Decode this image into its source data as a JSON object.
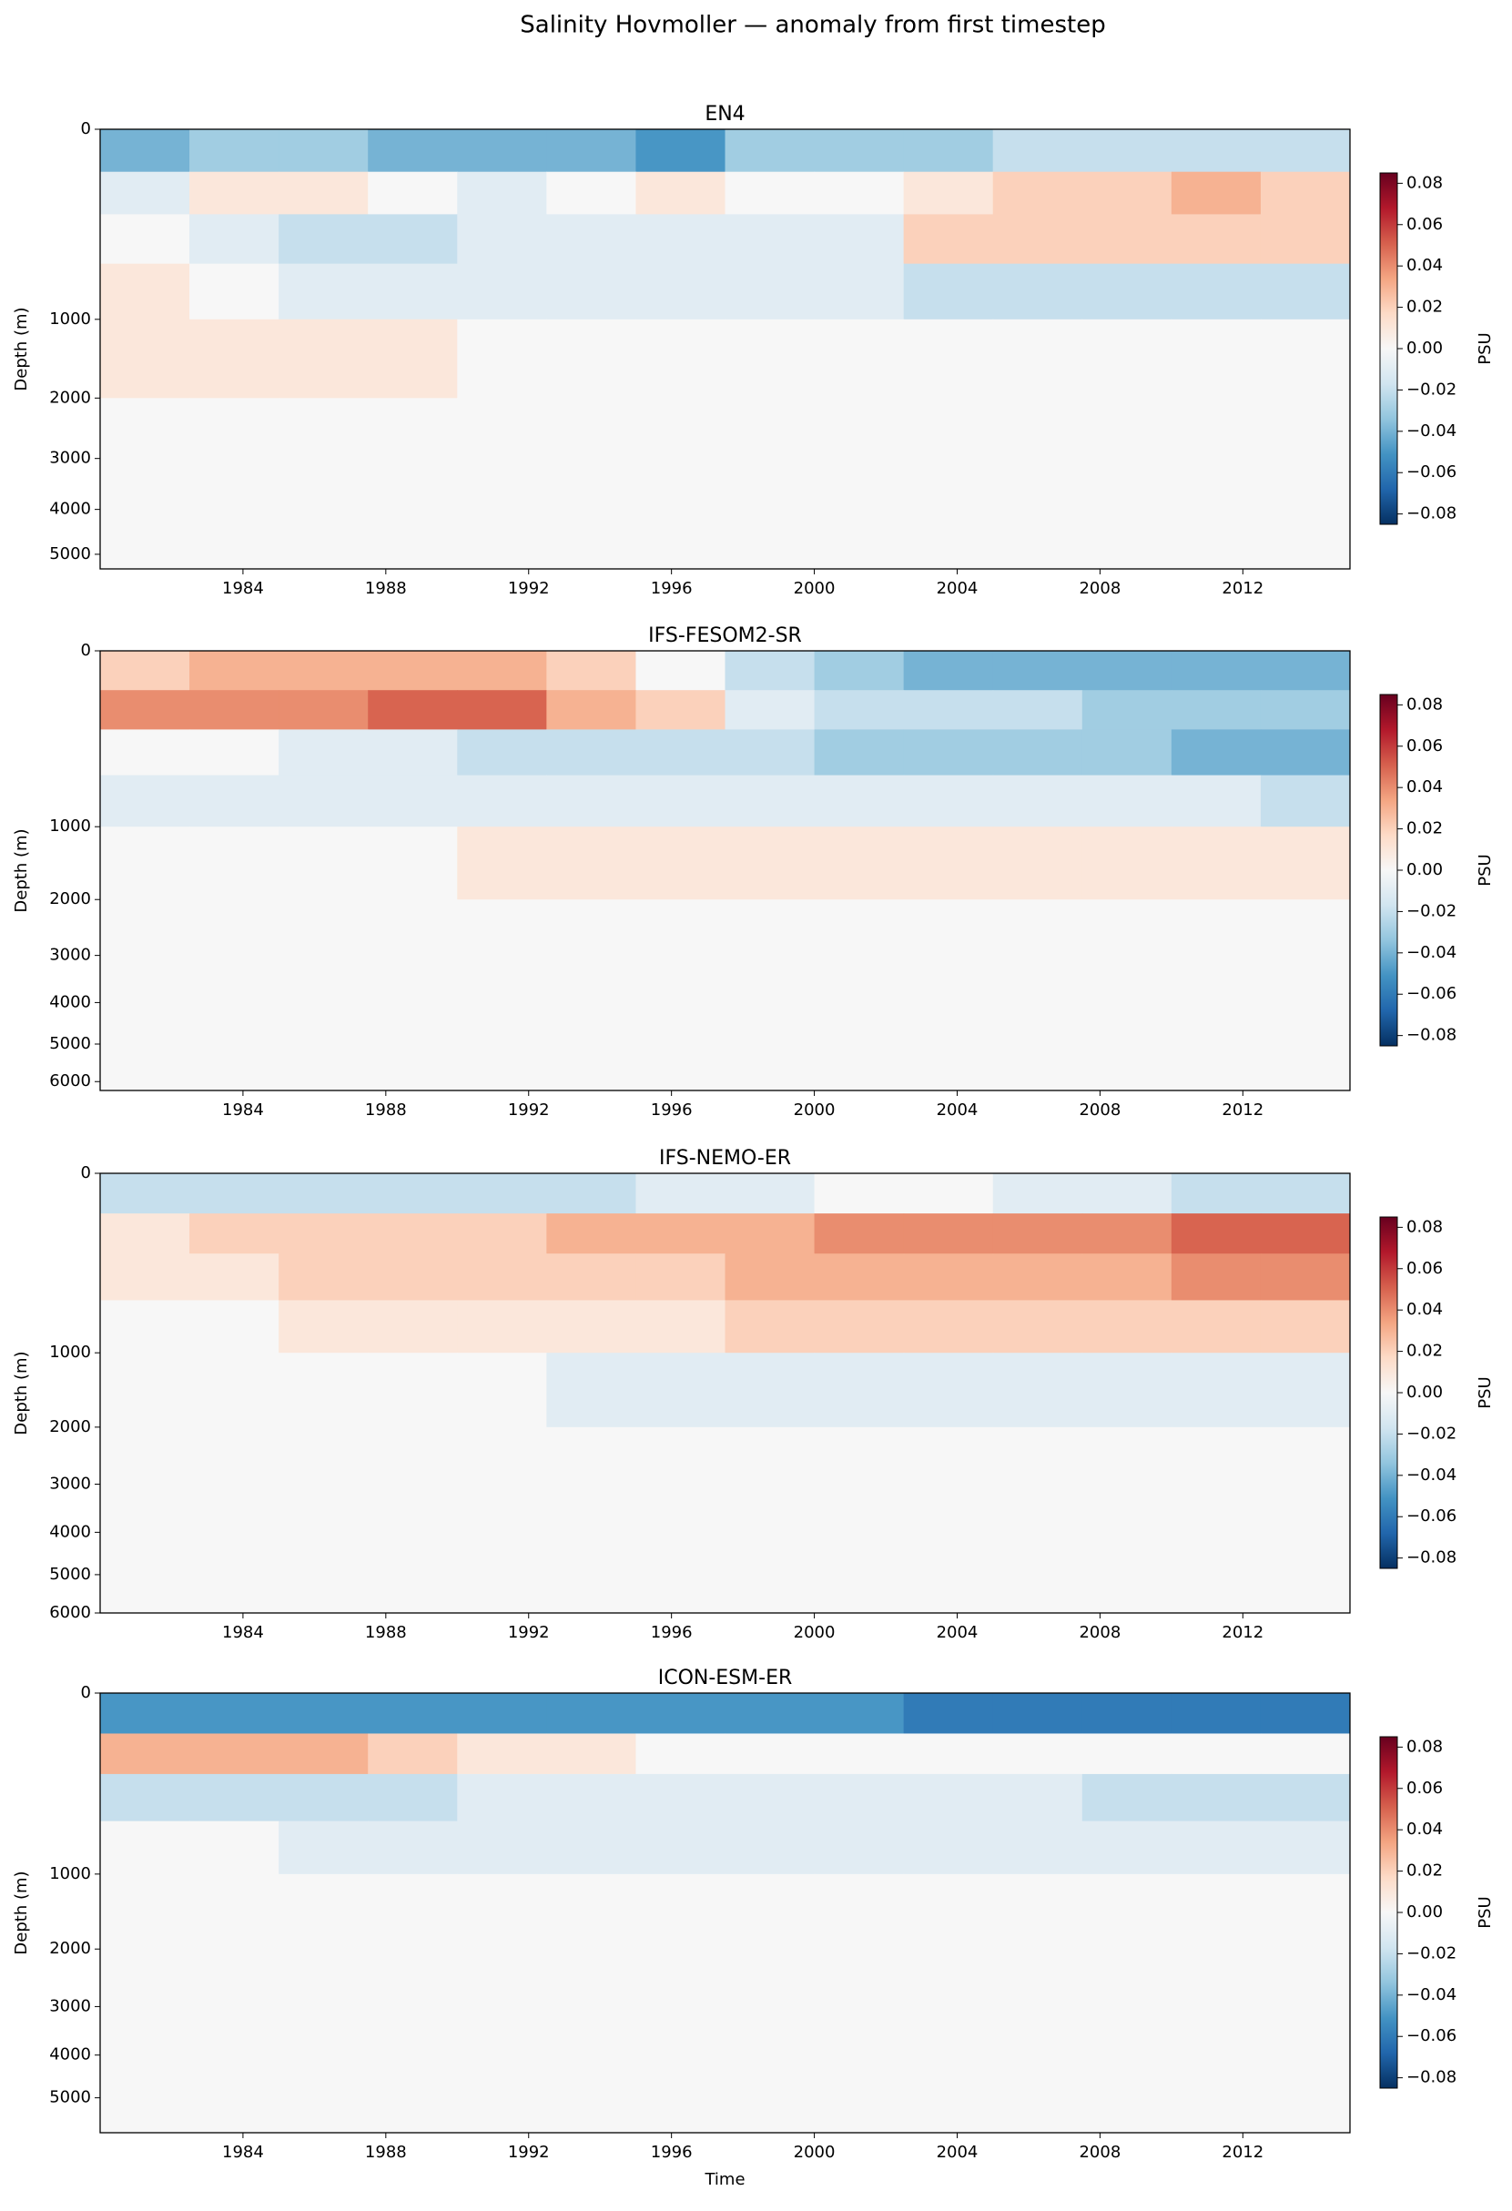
{
  "title": "Salinity Hovmoller — anomaly from first timestep",
  "chart_data": [
    {
      "type": "heatmap",
      "title": "EN4",
      "ylabel": "Depth (m)",
      "x_edges": [
        1980,
        1982.5,
        1985,
        1987.5,
        1990,
        1992.5,
        1995,
        1997.5,
        2000,
        2002.5,
        2005,
        2007.5,
        2010,
        2012.5,
        2015
      ],
      "depth_edges": [
        0,
        50,
        200,
        500,
        1000,
        2000,
        3500,
        5350
      ],
      "values": [
        [
          -0.04,
          -0.03,
          -0.03,
          -0.04,
          -0.04,
          -0.04,
          -0.05,
          -0.03,
          -0.03,
          -0.03,
          -0.02,
          -0.02,
          -0.02,
          -0.02
        ],
        [
          -0.01,
          0.01,
          0.01,
          0.0,
          -0.01,
          0.0,
          0.01,
          0.0,
          0.0,
          0.01,
          0.02,
          0.02,
          0.03,
          0.02
        ],
        [
          0.0,
          -0.01,
          -0.02,
          -0.02,
          -0.01,
          -0.01,
          -0.01,
          -0.01,
          -0.01,
          0.02,
          0.02,
          0.02,
          0.02,
          0.02
        ],
        [
          0.01,
          0.0,
          -0.01,
          -0.01,
          -0.01,
          -0.01,
          -0.01,
          -0.01,
          -0.01,
          -0.02,
          -0.02,
          -0.02,
          -0.02,
          -0.02
        ],
        [
          0.01,
          0.01,
          0.01,
          0.01,
          0.0,
          0.0,
          0.0,
          0.0,
          0.0,
          0.0,
          0.0,
          0.0,
          0.0,
          0.0
        ],
        [
          0.0,
          0.0,
          0.0,
          0.0,
          0.0,
          0.0,
          0.0,
          0.0,
          0.0,
          0.0,
          0.0,
          0.0,
          0.0,
          0.0
        ],
        [
          0.0,
          0.0,
          0.0,
          0.0,
          0.0,
          0.0,
          0.0,
          0.0,
          0.0,
          0.0,
          0.0,
          0.0,
          0.0,
          0.0
        ]
      ],
      "xlim": [
        1980,
        2015
      ],
      "xticks": [
        1984,
        1988,
        1992,
        1996,
        2000,
        2004,
        2008,
        2012
      ],
      "ylim": [
        0,
        5350
      ],
      "yticks": [
        0,
        1000,
        2000,
        3000,
        4000,
        5000
      ],
      "yscale": "sqrt",
      "yinvert": true
    },
    {
      "type": "heatmap",
      "title": "IFS-FESOM2-SR",
      "ylabel": "Depth (m)",
      "x_edges": [
        1980,
        1982.5,
        1985,
        1987.5,
        1990,
        1992.5,
        1995,
        1997.5,
        2000,
        2002.5,
        2005,
        2007.5,
        2010,
        2012.5,
        2015
      ],
      "depth_edges": [
        0,
        50,
        200,
        500,
        1000,
        2000,
        3500,
        6250
      ],
      "values": [
        [
          0.02,
          0.03,
          0.03,
          0.03,
          0.03,
          0.02,
          0.0,
          -0.02,
          -0.03,
          -0.04,
          -0.04,
          -0.04,
          -0.04,
          -0.04
        ],
        [
          0.04,
          0.04,
          0.04,
          0.05,
          0.05,
          0.03,
          0.02,
          -0.01,
          -0.02,
          -0.02,
          -0.02,
          -0.03,
          -0.03,
          -0.03
        ],
        [
          0.0,
          0.0,
          -0.01,
          -0.01,
          -0.02,
          -0.02,
          -0.02,
          -0.02,
          -0.03,
          -0.03,
          -0.03,
          -0.03,
          -0.04,
          -0.04
        ],
        [
          -0.01,
          -0.01,
          -0.01,
          -0.01,
          -0.01,
          -0.01,
          -0.01,
          -0.01,
          -0.01,
          -0.01,
          -0.01,
          -0.01,
          -0.01,
          -0.02
        ],
        [
          0.0,
          0.0,
          0.0,
          0.0,
          0.01,
          0.01,
          0.01,
          0.01,
          0.01,
          0.01,
          0.01,
          0.01,
          0.01,
          0.01
        ],
        [
          0.0,
          0.0,
          0.0,
          0.0,
          0.0,
          0.0,
          0.0,
          0.0,
          0.0,
          0.0,
          0.0,
          0.0,
          0.0,
          0.0
        ],
        [
          0.0,
          0.0,
          0.0,
          0.0,
          0.0,
          0.0,
          0.0,
          0.0,
          0.0,
          0.0,
          0.0,
          0.0,
          0.0,
          0.0
        ]
      ],
      "xlim": [
        1980,
        2015
      ],
      "xticks": [
        1984,
        1988,
        1992,
        1996,
        2000,
        2004,
        2008,
        2012
      ],
      "ylim": [
        0,
        6250
      ],
      "yticks": [
        0,
        1000,
        2000,
        3000,
        4000,
        5000,
        6000
      ],
      "yscale": "sqrt",
      "yinvert": true
    },
    {
      "type": "heatmap",
      "title": "IFS-NEMO-ER",
      "ylabel": "Depth (m)",
      "x_edges": [
        1980,
        1982.5,
        1985,
        1987.5,
        1990,
        1992.5,
        1995,
        1997.5,
        2000,
        2002.5,
        2005,
        2007.5,
        2010,
        2012.5,
        2015
      ],
      "depth_edges": [
        0,
        50,
        200,
        500,
        1000,
        2000,
        3500,
        6000
      ],
      "values": [
        [
          -0.02,
          -0.02,
          -0.02,
          -0.02,
          -0.02,
          -0.02,
          -0.01,
          -0.01,
          0.0,
          0.0,
          -0.01,
          -0.01,
          -0.02,
          -0.02
        ],
        [
          0.01,
          0.02,
          0.02,
          0.02,
          0.02,
          0.03,
          0.03,
          0.03,
          0.04,
          0.04,
          0.04,
          0.04,
          0.05,
          0.05
        ],
        [
          0.01,
          0.01,
          0.02,
          0.02,
          0.02,
          0.02,
          0.02,
          0.03,
          0.03,
          0.03,
          0.03,
          0.03,
          0.04,
          0.04
        ],
        [
          0.0,
          0.0,
          0.01,
          0.01,
          0.01,
          0.01,
          0.01,
          0.02,
          0.02,
          0.02,
          0.02,
          0.02,
          0.02,
          0.02
        ],
        [
          0.0,
          0.0,
          0.0,
          0.0,
          0.0,
          -0.01,
          -0.01,
          -0.01,
          -0.01,
          -0.01,
          -0.01,
          -0.01,
          -0.01,
          -0.01
        ],
        [
          0.0,
          0.0,
          0.0,
          0.0,
          0.0,
          0.0,
          0.0,
          0.0,
          0.0,
          0.0,
          0.0,
          0.0,
          0.0,
          0.0
        ],
        [
          0.0,
          0.0,
          0.0,
          0.0,
          0.0,
          0.0,
          0.0,
          0.0,
          0.0,
          0.0,
          0.0,
          0.0,
          0.0,
          0.0
        ]
      ],
      "xlim": [
        1980,
        2015
      ],
      "xticks": [
        1984,
        1988,
        1992,
        1996,
        2000,
        2004,
        2008,
        2012
      ],
      "ylim": [
        0,
        6000
      ],
      "yticks": [
        0,
        1000,
        2000,
        3000,
        4000,
        5000,
        6000
      ],
      "yscale": "sqrt",
      "yinvert": true
    },
    {
      "type": "heatmap",
      "title": "ICON-ESM-ER",
      "ylabel": "Depth (m)",
      "xlabel": "Time",
      "x_edges": [
        1980,
        1982.5,
        1985,
        1987.5,
        1990,
        1992.5,
        1995,
        1997.5,
        2000,
        2002.5,
        2005,
        2007.5,
        2010,
        2012.5,
        2015
      ],
      "depth_edges": [
        0,
        50,
        200,
        500,
        1000,
        2000,
        3500,
        5900
      ],
      "values": [
        [
          -0.05,
          -0.05,
          -0.05,
          -0.05,
          -0.05,
          -0.05,
          -0.05,
          -0.05,
          -0.05,
          -0.06,
          -0.06,
          -0.06,
          -0.06,
          -0.06
        ],
        [
          0.03,
          0.03,
          0.03,
          0.02,
          0.01,
          0.01,
          0.0,
          0.0,
          0.0,
          0.0,
          0.0,
          0.0,
          0.0,
          0.0
        ],
        [
          -0.02,
          -0.02,
          -0.02,
          -0.02,
          -0.01,
          -0.01,
          -0.01,
          -0.01,
          -0.01,
          -0.01,
          -0.01,
          -0.02,
          -0.02,
          -0.02
        ],
        [
          0.0,
          0.0,
          -0.01,
          -0.01,
          -0.01,
          -0.01,
          -0.01,
          -0.01,
          -0.01,
          -0.01,
          -0.01,
          -0.01,
          -0.01,
          -0.01
        ],
        [
          0.0,
          0.0,
          0.0,
          0.0,
          0.0,
          0.0,
          0.0,
          0.0,
          0.0,
          0.0,
          0.0,
          0.0,
          0.0,
          0.0
        ],
        [
          0.0,
          0.0,
          0.0,
          0.0,
          0.0,
          0.0,
          0.0,
          0.0,
          0.0,
          0.0,
          0.0,
          0.0,
          0.0,
          0.0
        ],
        [
          0.0,
          0.0,
          0.0,
          0.0,
          0.0,
          0.0,
          0.0,
          0.0,
          0.0,
          0.0,
          0.0,
          0.0,
          0.0,
          0.0
        ]
      ],
      "xlim": [
        1980,
        2015
      ],
      "xticks": [
        1984,
        1988,
        1992,
        1996,
        2000,
        2004,
        2008,
        2012
      ],
      "ylim": [
        0,
        5900
      ],
      "yticks": [
        0,
        1000,
        2000,
        3000,
        4000,
        5000
      ],
      "yscale": "sqrt",
      "yinvert": true
    }
  ],
  "colorbar": {
    "label": "PSU",
    "clim": [
      -0.085,
      0.085
    ],
    "ticks": [
      {
        "value": -0.08,
        "label": "−0.08"
      },
      {
        "value": -0.06,
        "label": "−0.06"
      },
      {
        "value": -0.04,
        "label": "−0.04"
      },
      {
        "value": -0.02,
        "label": "−0.02"
      },
      {
        "value": 0,
        "label": "0.00"
      },
      0.02,
      0.04,
      0.06,
      0.08
    ],
    "colormap": [
      "#053061",
      "#2166ac",
      "#4393c3",
      "#92c5de",
      "#d1e5f0",
      "#f7f7f7",
      "#fddbc7",
      "#f4a582",
      "#d6604d",
      "#b2182b",
      "#67001f"
    ]
  }
}
